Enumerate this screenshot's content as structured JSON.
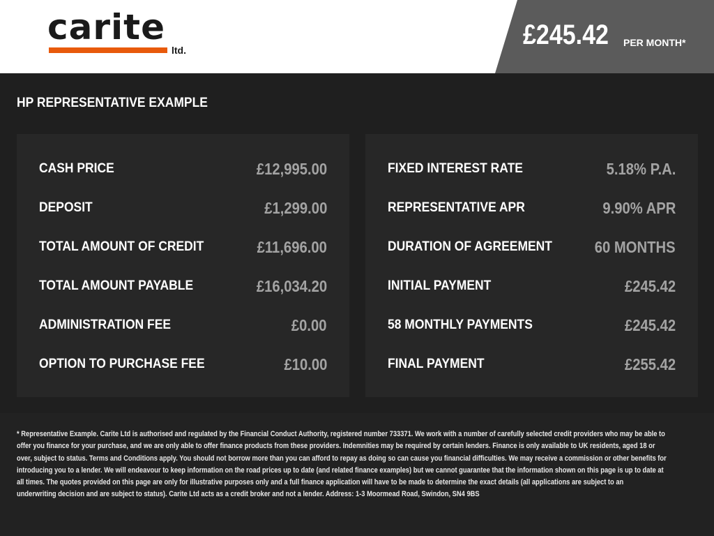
{
  "brand": {
    "logo_text": "carite",
    "logo_suffix": "ltd.",
    "accent": "#e85a0c"
  },
  "header": {
    "monthly_price": "£245.42",
    "per_month_label": "PER MONTH*"
  },
  "section_title": "HP REPRESENTATIVE EXAMPLE",
  "left_panel": [
    {
      "label": "CASH PRICE",
      "value": "£12,995.00"
    },
    {
      "label": "DEPOSIT",
      "value": "£1,299.00"
    },
    {
      "label": "TOTAL AMOUNT OF CREDIT",
      "value": "£11,696.00"
    },
    {
      "label": "TOTAL AMOUNT PAYABLE",
      "value": "£16,034.20"
    },
    {
      "label": "ADMINISTRATION FEE",
      "value": "£0.00"
    },
    {
      "label": "OPTION TO PURCHASE FEE",
      "value": "£10.00"
    }
  ],
  "right_panel": [
    {
      "label": "FIXED INTEREST RATE",
      "value": "5.18% P.A."
    },
    {
      "label": "REPRESENTATIVE APR",
      "value": "9.90% APR"
    },
    {
      "label": "DURATION OF AGREEMENT",
      "value": "60 MONTHS"
    },
    {
      "label": "INITIAL PAYMENT",
      "value": "£245.42"
    },
    {
      "label": "58 MONTHLY PAYMENTS",
      "value": "£245.42"
    },
    {
      "label": "FINAL PAYMENT",
      "value": "£255.42"
    }
  ],
  "disclaimer_lines": [
    "* Representative Example. Carite Ltd is authorised and regulated by the Financial Conduct Authority, registered number 733371. We work with a number of carefully selected credit providers who may be able to",
    "offer you finance for your purchase, and we are only able to offer finance products from these providers. Indemnities may be required by certain lenders. Finance is only available to UK residents, aged 18 or",
    "over, subject to status. Terms and Conditions apply. You should not borrow more than you can afford to repay as doing so can cause you financial difficulties. We may receive a commission or other benefits for",
    "introducing you to a lender. We will endeavour to keep information on the road prices up to date (and related finance examples) but we cannot guarantee that the information shown on this page is up to date at",
    "all times. The quotes provided on this page are only for illustrative purposes only and a full finance application will have to be made to determine the exact details (all applications are subject to an",
    "underwriting decision and are subject to status). Carite Ltd acts as a credit broker and not a lender. Address: 1-3 Moormead Road, Swindon, SN4 9BS"
  ]
}
